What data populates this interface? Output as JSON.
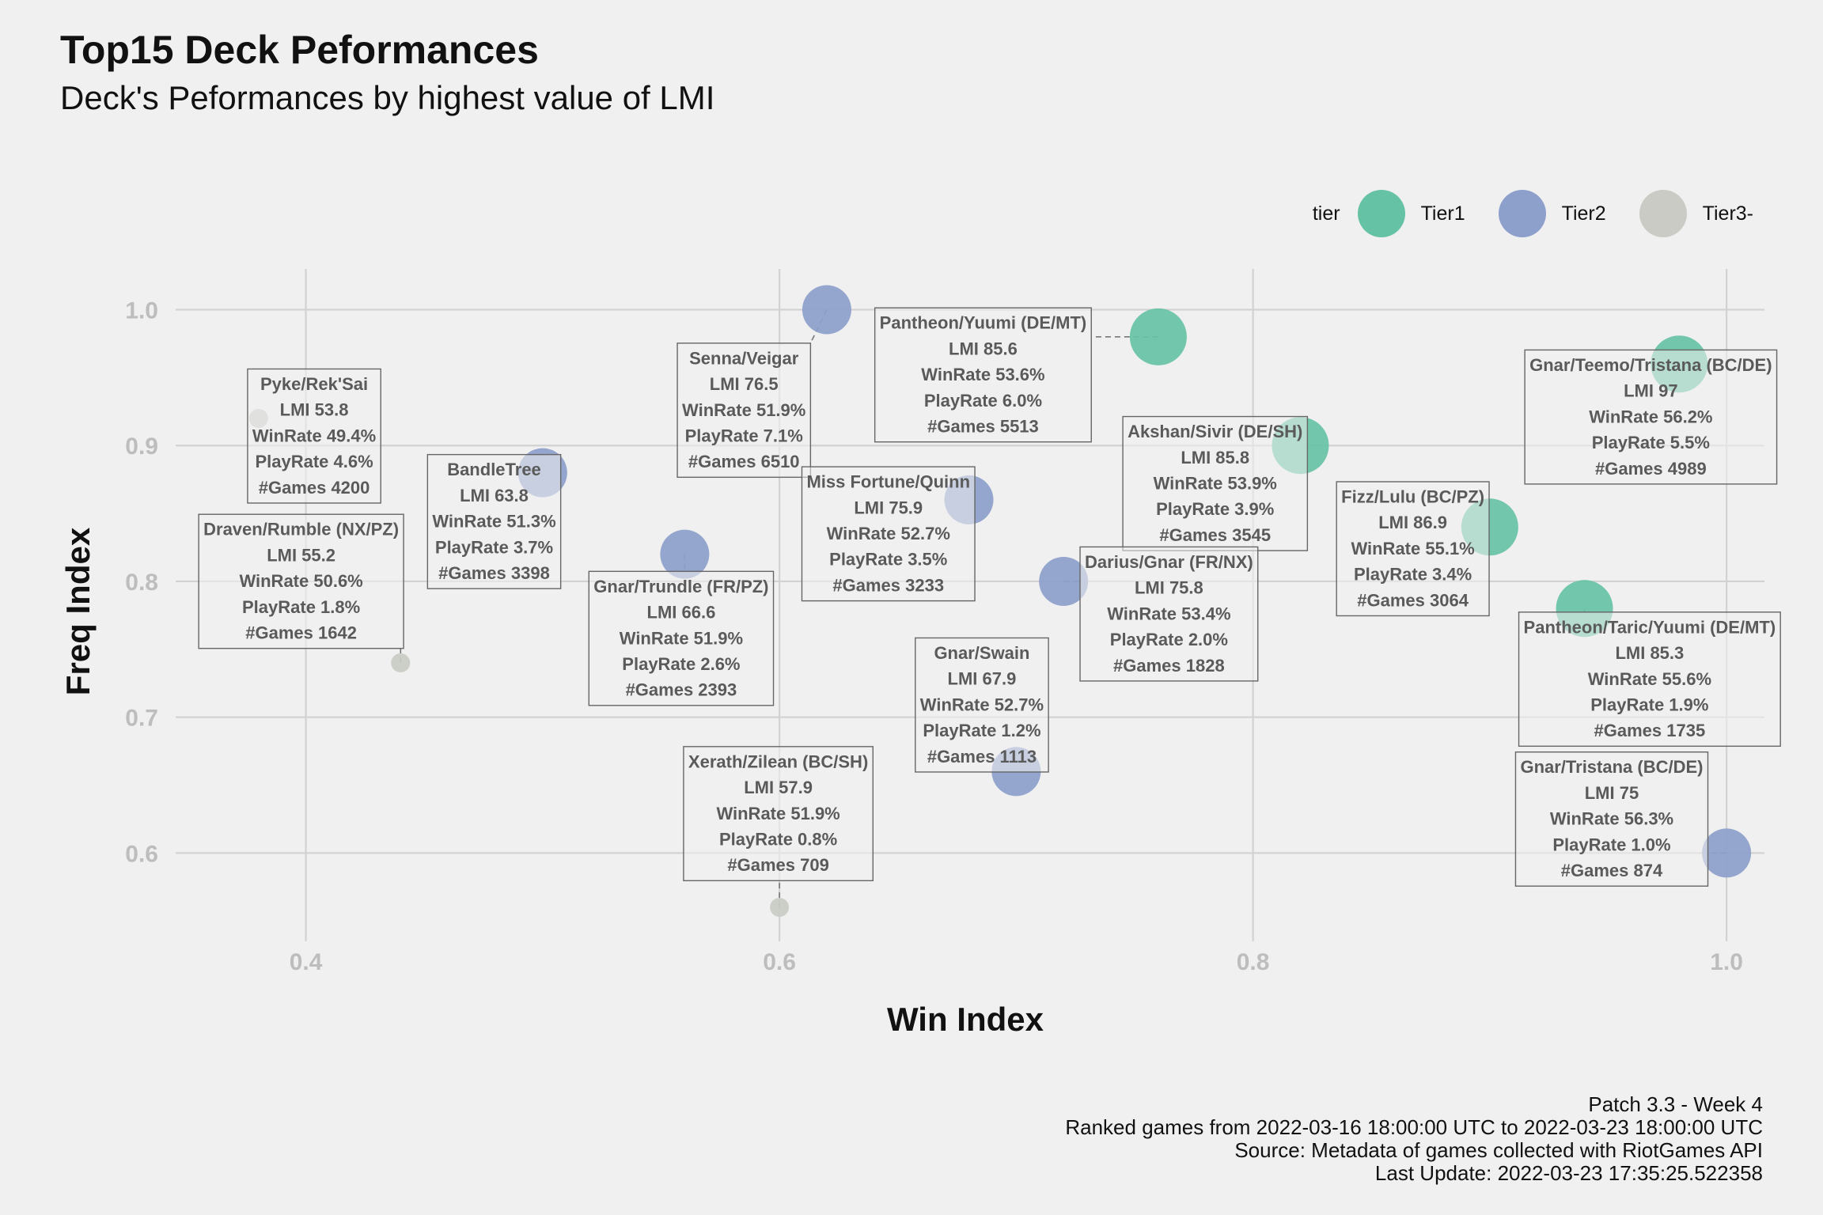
{
  "title": "Top15 Deck Peformances",
  "subtitle": "Deck's Peformances by highest value of LMI",
  "caption": [
    "Patch 3.3 - Week 4",
    "Ranked games from 2022-03-16 18:00:00 UTC to 2022-03-23 18:00:00 UTC",
    "Source: Metadata of games collected with RiotGames API",
    "Last Update: 2022-03-23 17:35:25.522358"
  ],
  "legend": {
    "title": "tier",
    "items": [
      {
        "label": "Tier1",
        "color": "#66C2A5"
      },
      {
        "label": "Tier2",
        "color": "#8DA0CB"
      },
      {
        "label": "Tier3-",
        "color": "#C9CBC4"
      }
    ]
  },
  "chart_data": {
    "type": "scatter",
    "xlabel": "Win Index",
    "ylabel": "Freq Index",
    "xlim": [
      0.345,
      1.016
    ],
    "ylim": [
      0.535,
      1.03
    ],
    "xticks": [
      0.4,
      0.6,
      0.8,
      1.0
    ],
    "yticks": [
      0.6,
      0.7,
      0.8,
      0.9,
      1.0
    ],
    "xtick_labels": [
      "0.4",
      "0.6",
      "0.8",
      "1.0"
    ],
    "ytick_labels": [
      "0.6",
      "0.7",
      "0.8",
      "0.9",
      "1.0"
    ],
    "grid": true,
    "size_legend": false,
    "points": [
      {
        "deck": "Pyke/Rek'Sai",
        "x": 0.38,
        "y": 0.92,
        "tier": "Tier3-",
        "lmi": "LMI 53.8",
        "winrate": "WinRate 49.4%",
        "playrate": "PlayRate 4.6%",
        "games": "#Games 4200",
        "label_at": [
          0.4035,
          0.907
        ]
      },
      {
        "deck": "Senna/Veigar",
        "x": 0.62,
        "y": 1.0,
        "tier": "Tier2",
        "lmi": "LMI 76.5",
        "winrate": "WinRate 51.9%",
        "playrate": "PlayRate 7.1%",
        "games": "#Games 6510",
        "label_at": [
          0.585,
          0.926
        ]
      },
      {
        "deck": "Pantheon/Yuumi (DE/MT)",
        "x": 0.76,
        "y": 0.98,
        "tier": "Tier1",
        "lmi": "LMI 85.6",
        "winrate": "WinRate 53.6%",
        "playrate": "PlayRate 6.0%",
        "games": "#Games 5513",
        "label_at": [
          0.686,
          0.952
        ]
      },
      {
        "deck": "Gnar/Teemo/Tristana (BC/DE)",
        "x": 0.98,
        "y": 0.96,
        "tier": "Tier1",
        "lmi": "LMI 97",
        "winrate": "WinRate 56.2%",
        "playrate": "PlayRate 5.5%",
        "games": "#Games 4989",
        "label_at": [
          0.968,
          0.921
        ]
      },
      {
        "deck": "Akshan/Sivir (DE/SH)",
        "x": 0.82,
        "y": 0.9,
        "tier": "Tier1",
        "lmi": "LMI 85.8",
        "winrate": "WinRate 53.9%",
        "playrate": "PlayRate 3.9%",
        "games": "#Games 3545",
        "label_at": [
          0.784,
          0.872
        ]
      },
      {
        "deck": "BandleTree",
        "x": 0.5,
        "y": 0.88,
        "tier": "Tier2",
        "lmi": "LMI 63.8",
        "winrate": "WinRate 51.3%",
        "playrate": "PlayRate 3.7%",
        "games": "#Games 3398",
        "label_at": [
          0.4795,
          0.844
        ]
      },
      {
        "deck": "Miss Fortune/Quinn",
        "x": 0.68,
        "y": 0.86,
        "tier": "Tier2",
        "lmi": "LMI 75.9",
        "winrate": "WinRate 52.7%",
        "playrate": "PlayRate 3.5%",
        "games": "#Games 3233",
        "label_at": [
          0.646,
          0.835
        ]
      },
      {
        "deck": "Fizz/Lulu (BC/PZ)",
        "x": 0.9,
        "y": 0.84,
        "tier": "Tier1",
        "lmi": "LMI 86.9",
        "winrate": "WinRate 55.1%",
        "playrate": "PlayRate 3.4%",
        "games": "#Games 3064",
        "label_at": [
          0.8675,
          0.824
        ]
      },
      {
        "deck": "Draven/Rumble (NX/PZ)",
        "x": 0.44,
        "y": 0.74,
        "tier": "Tier3-",
        "lmi": "LMI 55.2",
        "winrate": "WinRate 50.6%",
        "playrate": "PlayRate 1.8%",
        "games": "#Games 1642",
        "label_at": [
          0.398,
          0.8
        ]
      },
      {
        "deck": "Gnar/Trundle (FR/PZ)",
        "x": 0.56,
        "y": 0.82,
        "tier": "Tier2",
        "lmi": "LMI 66.6",
        "winrate": "WinRate 51.9%",
        "playrate": "PlayRate 2.6%",
        "games": "#Games 2393",
        "label_at": [
          0.5585,
          0.758
        ]
      },
      {
        "deck": "Darius/Gnar (FR/NX)",
        "x": 0.72,
        "y": 0.8,
        "tier": "Tier2",
        "lmi": "LMI 75.8",
        "winrate": "WinRate 53.4%",
        "playrate": "PlayRate 2.0%",
        "games": "#Games 1828",
        "label_at": [
          0.7645,
          0.776
        ]
      },
      {
        "deck": "Pantheon/Taric/Yuumi (DE/MT)",
        "x": 0.94,
        "y": 0.78,
        "tier": "Tier1",
        "lmi": "LMI 85.3",
        "winrate": "WinRate 55.6%",
        "playrate": "PlayRate 1.9%",
        "games": "#Games 1735",
        "label_at": [
          0.9675,
          0.728
        ]
      },
      {
        "deck": "Gnar/Swain",
        "x": 0.7,
        "y": 0.66,
        "tier": "Tier2",
        "lmi": "LMI 67.9",
        "winrate": "WinRate 52.7%",
        "playrate": "PlayRate 1.2%",
        "games": "#Games 1113",
        "label_at": [
          0.6855,
          0.709
        ]
      },
      {
        "deck": "Gnar/Tristana (BC/DE)",
        "x": 1.0,
        "y": 0.6,
        "tier": "Tier2",
        "lmi": "LMI 75",
        "winrate": "WinRate 56.3%",
        "playrate": "PlayRate 1.0%",
        "games": "#Games 874",
        "label_at": [
          0.9515,
          0.625
        ]
      },
      {
        "deck": "Xerath/Zilean (BC/SH)",
        "x": 0.6,
        "y": 0.56,
        "tier": "Tier3-",
        "lmi": "LMI 57.9",
        "winrate": "WinRate 51.9%",
        "playrate": "PlayRate 0.8%",
        "games": "#Games 709",
        "label_at": [
          0.5995,
          0.629
        ]
      }
    ]
  }
}
